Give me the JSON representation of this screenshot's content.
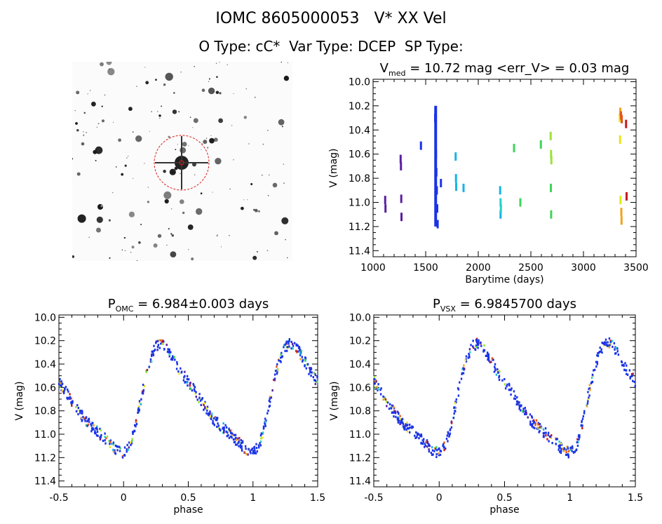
{
  "header": {
    "title": "IOMC 8605000053   V* XX Vel",
    "subtitle": "O Type: cC*  Var Type: DCEP  SP Type:"
  },
  "colors": {
    "axis": "#000000",
    "main_series": "#1a33e6",
    "aperture": "#e01b1b",
    "palette": [
      "#5a1fa0",
      "#1a33e6",
      "#17b3e6",
      "#22d3c7",
      "#3fd45a",
      "#9be23a",
      "#e6e61a",
      "#f2a21a",
      "#e6541a",
      "#c81a1a"
    ]
  },
  "chart_data": [
    {
      "type": "scatter",
      "panel": "lightcurve-time",
      "title": "V_med = 10.72 mag <err_V> = 0.03 mag",
      "title_parts": {
        "v": "V",
        "sub": "med",
        "rest": " = 10.72 mag <err_V> = 0.03 mag"
      },
      "xlabel": "Barytime (days)",
      "ylabel": "V (mag)",
      "xlim": [
        1000,
        3500
      ],
      "ylim": [
        11.45,
        9.98
      ],
      "y_inverted": true,
      "xticks": [
        1000,
        1500,
        2000,
        2500,
        3000,
        3500
      ],
      "yticks": [
        10.0,
        10.2,
        10.4,
        10.6,
        10.8,
        11.0,
        11.2,
        11.4
      ],
      "series": [
        {
          "color": "#5a1fa0",
          "x": [
            1115,
            1118,
            1262,
            1265,
            1268,
            1270
          ],
          "y": [
            10.98,
            11.05,
            10.64,
            10.7,
            10.97,
            11.12
          ]
        },
        {
          "color": "#1a33e6",
          "x": [
            1455,
            1590,
            1594,
            1598,
            1602,
            1606,
            1610,
            1614,
            1645
          ],
          "y": [
            10.53,
            10.3,
            10.45,
            10.6,
            10.75,
            10.9,
            11.05,
            11.18,
            10.84
          ]
        },
        {
          "color": "#17b3e6",
          "x": [
            1785,
            1788,
            1790,
            1860,
            2208,
            2212
          ],
          "y": [
            10.62,
            10.8,
            10.87,
            10.88,
            10.9,
            11.1
          ]
        },
        {
          "color": "#22d3c7",
          "x": [
            2212,
            2215
          ],
          "y": [
            11.0,
            11.05
          ]
        },
        {
          "color": "#3fd45a",
          "x": [
            2340,
            2400,
            2595,
            2690,
            2693
          ],
          "y": [
            10.55,
            11.0,
            10.52,
            10.88,
            11.1
          ]
        },
        {
          "color": "#9be23a",
          "x": [
            2688,
            2692,
            2695
          ],
          "y": [
            10.45,
            10.6,
            10.65
          ]
        },
        {
          "color": "#e6e61a",
          "x": [
            3345,
            3348,
            3352
          ],
          "y": [
            10.3,
            10.48,
            10.98
          ]
        },
        {
          "color": "#f2a21a",
          "x": [
            3350,
            3360,
            3362
          ],
          "y": [
            10.25,
            11.08,
            11.15
          ]
        },
        {
          "color": "#e6541a",
          "x": [
            3357,
            3364
          ],
          "y": [
            10.28,
            10.31
          ]
        },
        {
          "color": "#c81a1a",
          "x": [
            3405,
            3410
          ],
          "y": [
            10.35,
            10.95
          ]
        }
      ]
    },
    {
      "type": "scatter",
      "panel": "phase-omc",
      "title": "P_OMC = 6.984±0.003 days",
      "title_parts": {
        "p": "P",
        "sub": "OMC",
        "rest": " = 6.984±0.003 days"
      },
      "xlabel": "phase",
      "ylabel": "V (mag)",
      "xlim": [
        -0.5,
        1.5
      ],
      "ylim": [
        11.45,
        9.98
      ],
      "y_inverted": true,
      "xticks": [
        -0.5,
        0.0,
        0.5,
        1.0,
        1.5
      ],
      "yticks": [
        10.0,
        10.2,
        10.4,
        10.6,
        10.8,
        11.0,
        11.2,
        11.4
      ],
      "phase_offset": 0.0
    },
    {
      "type": "scatter",
      "panel": "phase-vsx",
      "title": "P_VSX = 6.9845700 days",
      "title_parts": {
        "p": "P",
        "sub": "VSX",
        "rest": " = 6.9845700 days"
      },
      "xlabel": "phase",
      "ylabel": "V (mag)",
      "xlim": [
        -0.5,
        1.5
      ],
      "ylim": [
        11.45,
        9.98
      ],
      "y_inverted": true,
      "xticks": [
        -0.5,
        0.0,
        0.5,
        1.0,
        1.5
      ],
      "yticks": [
        10.0,
        10.2,
        10.4,
        10.6,
        10.8,
        11.0,
        11.2,
        11.4
      ],
      "phase_offset": 0.0
    }
  ],
  "light_curve_template": {
    "phase": [
      -0.5,
      -0.4,
      -0.3,
      -0.2,
      -0.1,
      -0.05,
      0.0,
      0.05,
      0.1,
      0.15,
      0.2,
      0.25,
      0.3,
      0.35,
      0.4,
      0.45,
      0.5
    ],
    "mag": [
      10.55,
      10.72,
      10.88,
      10.98,
      11.08,
      11.14,
      11.16,
      11.1,
      10.88,
      10.62,
      10.38,
      10.25,
      10.22,
      10.28,
      10.38,
      10.48,
      10.55
    ]
  }
}
